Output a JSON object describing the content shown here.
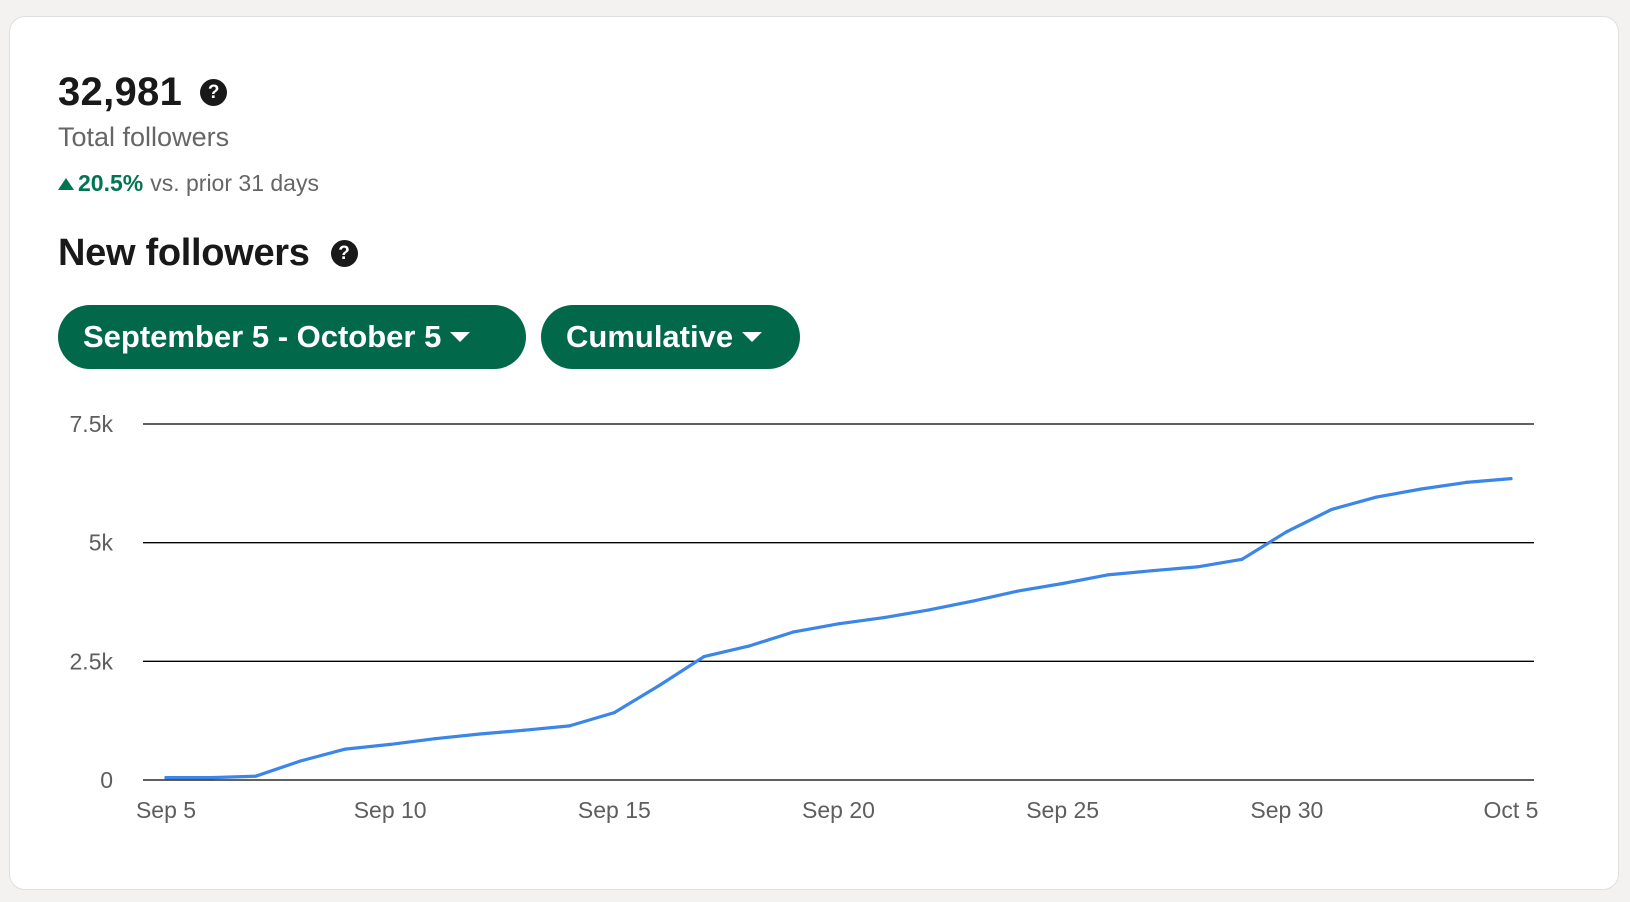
{
  "summary": {
    "total_value": "32,981",
    "total_label": "Total followers",
    "change_pct": "20.5%",
    "change_text": "vs. prior 31 days",
    "change_color": "#01754f"
  },
  "section": {
    "title": "New followers"
  },
  "icons": {
    "help": "question-circle-icon",
    "dropdown": "caret-down-icon"
  },
  "filters": {
    "date_range": "September 5 - October 5",
    "mode": "Cumulative",
    "button_color": "#01684a"
  },
  "chart_data": {
    "type": "line",
    "line_color": "#3b86e8",
    "x": [
      "Sep 5",
      "Sep 6",
      "Sep 7",
      "Sep 8",
      "Sep 9",
      "Sep 10",
      "Sep 11",
      "Sep 12",
      "Sep 13",
      "Sep 14",
      "Sep 15",
      "Sep 16",
      "Sep 17",
      "Sep 18",
      "Sep 19",
      "Sep 20",
      "Sep 21",
      "Sep 22",
      "Sep 23",
      "Sep 24",
      "Sep 25",
      "Sep 26",
      "Sep 27",
      "Sep 28",
      "Sep 29",
      "Sep 30",
      "Oct 1",
      "Oct 2",
      "Oct 3",
      "Oct 4",
      "Oct 5"
    ],
    "series": [
      {
        "values": [
          50,
          50,
          80,
          400,
          650,
          750,
          870,
          970,
          1050,
          1140,
          1420,
          1990,
          2600,
          2820,
          3120,
          3290,
          3420,
          3580,
          3770,
          3980,
          4140,
          4320,
          4410,
          4490,
          4650,
          5230,
          5700,
          5960,
          6130,
          6270,
          6350
        ]
      }
    ],
    "x_ticks": [
      "Sep 5",
      "Sep 10",
      "Sep 15",
      "Sep 20",
      "Sep 25",
      "Sep 30",
      "Oct 5"
    ],
    "y_ticks": [
      "0",
      "2.5k",
      "5k",
      "7.5k"
    ],
    "y_tick_values": [
      0,
      2500,
      5000,
      7500
    ],
    "ylim": [
      0,
      7500
    ],
    "grid": "horizontal"
  }
}
